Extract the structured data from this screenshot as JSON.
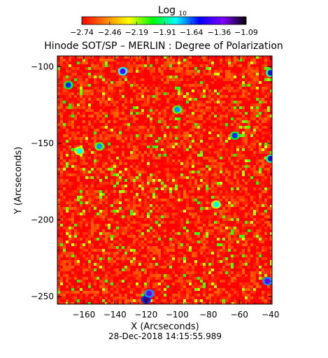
{
  "colorbar": {
    "title_main": "Log",
    "title_sub": "10",
    "tick_labels": [
      "-2.74",
      "-2.46",
      "-2.19",
      "-1.91",
      "-1.64",
      "-1.36",
      "-1.09"
    ],
    "range": [
      -2.74,
      -1.09
    ],
    "colormap_stops": [
      "#ff0000",
      "#ff8000",
      "#ffff00",
      "#00ff00",
      "#00ffff",
      "#0000ff",
      "#8000ff",
      "#000000"
    ]
  },
  "chart_data": {
    "type": "heatmap",
    "title": "Hinode SOT/SP – MERLIN : Degree of Polarization",
    "xlabel": "X (Arcseconds)",
    "ylabel": "Y (Arcseconds)",
    "xlim": [
      -177,
      -39
    ],
    "ylim": [
      -255,
      -93
    ],
    "xticks": [
      -160,
      -140,
      -120,
      -100,
      -80,
      -60,
      -40
    ],
    "yticks": [
      -100,
      -150,
      -200,
      -250
    ],
    "value_scale": "log10",
    "value_range": [
      -2.74,
      -1.09
    ],
    "dominant_value": -2.7,
    "bright_patches": [
      {
        "x": -120,
        "y": -252,
        "value": -1.2
      },
      {
        "x": -118,
        "y": -248,
        "value": -1.3
      },
      {
        "x": -42,
        "y": -240,
        "value": -1.3
      },
      {
        "x": -40,
        "y": -104,
        "value": -1.5
      },
      {
        "x": -135,
        "y": -103,
        "value": -1.4
      },
      {
        "x": -170,
        "y": -112,
        "value": -1.6
      },
      {
        "x": -40,
        "y": -160,
        "value": -1.5
      },
      {
        "x": -150,
        "y": -152,
        "value": -1.7
      },
      {
        "x": -100,
        "y": -128,
        "value": -1.7
      },
      {
        "x": -63,
        "y": -145,
        "value": -1.6
      },
      {
        "x": -163,
        "y": -155,
        "value": -1.8
      },
      {
        "x": -75,
        "y": -190,
        "value": -1.8
      }
    ]
  },
  "footer": {
    "timestamp": "28-Dec-2018 14:15:55.989"
  }
}
